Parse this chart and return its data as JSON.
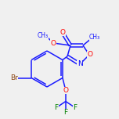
{
  "bg_color": "#f0f0f0",
  "bond_color": "#1a1aff",
  "atom_colors": {
    "O": "#ff0000",
    "N": "#0000ff",
    "Br": "#8b4513",
    "F": "#008000",
    "C": "#1a1aff"
  },
  "line_width": 1.1,
  "font_size": 6.5,
  "fig_size": [
    1.52,
    1.52
  ],
  "dpi": 100
}
